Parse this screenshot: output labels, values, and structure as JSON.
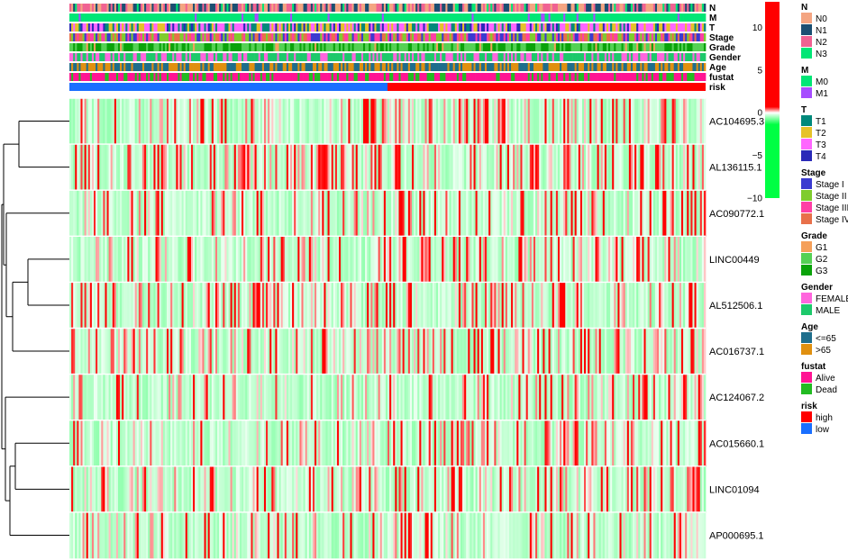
{
  "chart_data": {
    "type": "heatmap",
    "n_samples": 340,
    "risk_split": 0.5,
    "annotation_tracks": [
      {
        "name": "N",
        "levels": [
          "N0",
          "N1",
          "N2",
          "N3"
        ],
        "colors": [
          "#F4A582",
          "#1B4F72",
          "#F06292",
          "#00E676"
        ],
        "weights": [
          0.35,
          0.3,
          0.25,
          0.1
        ]
      },
      {
        "name": "M",
        "levels": [
          "M0",
          "M1"
        ],
        "colors": [
          "#00E676",
          "#A64DFF"
        ],
        "weights": [
          0.95,
          0.05
        ]
      },
      {
        "name": "T",
        "levels": [
          "T1",
          "T2",
          "T3",
          "T4"
        ],
        "colors": [
          "#00897B",
          "#E6C229",
          "#FF66FF",
          "#2A2AB8"
        ],
        "weights": [
          0.2,
          0.3,
          0.35,
          0.15
        ]
      },
      {
        "name": "Stage",
        "levels": [
          "Stage I",
          "Stage II",
          "Stage III",
          "Stage IV"
        ],
        "colors": [
          "#3B3BD0",
          "#7FCC2E",
          "#FF3EA5",
          "#E8704A"
        ],
        "weights": [
          0.2,
          0.3,
          0.3,
          0.2
        ]
      },
      {
        "name": "Grade",
        "levels": [
          "G1",
          "G2",
          "G3"
        ],
        "colors": [
          "#F5A05A",
          "#55D155",
          "#0AA30A"
        ],
        "weights": [
          0.05,
          0.55,
          0.4
        ]
      },
      {
        "name": "Gender",
        "levels": [
          "FEMALE",
          "MALE"
        ],
        "colors": [
          "#FF66DD",
          "#1DC96B"
        ],
        "weights": [
          0.4,
          0.6
        ]
      },
      {
        "name": "Age",
        "levels": [
          "<=65",
          ">65"
        ],
        "colors": [
          "#1F6E8C",
          "#E09010"
        ],
        "weights": [
          0.55,
          0.45
        ]
      },
      {
        "name": "fustat",
        "levels": [
          "Alive",
          "Dead"
        ],
        "colors": [
          "#FF1493",
          "#22BB22"
        ],
        "weights": [
          0.75,
          0.25
        ]
      },
      {
        "name": "risk",
        "levels": [
          "high",
          "low"
        ],
        "colors": [
          "#FF0000",
          "#1A6FFF"
        ],
        "weights": [
          0.5,
          0.5
        ]
      }
    ],
    "genes": [
      "AC104695.3",
      "AL136115.1",
      "AC090772.1",
      "LINC00449",
      "AL512506.1",
      "AC016737.1",
      "AC124067.2",
      "AC015660.1",
      "LINC01094",
      "AP000695.1"
    ],
    "color_scale": {
      "min": -10,
      "max": 13,
      "ticks": [
        10,
        5,
        0,
        -5,
        -10
      ],
      "colors": {
        "low": "#00FF44",
        "mid": "#FFFFFF",
        "high": "#FF0000"
      }
    }
  },
  "legend_title_cbar": ""
}
